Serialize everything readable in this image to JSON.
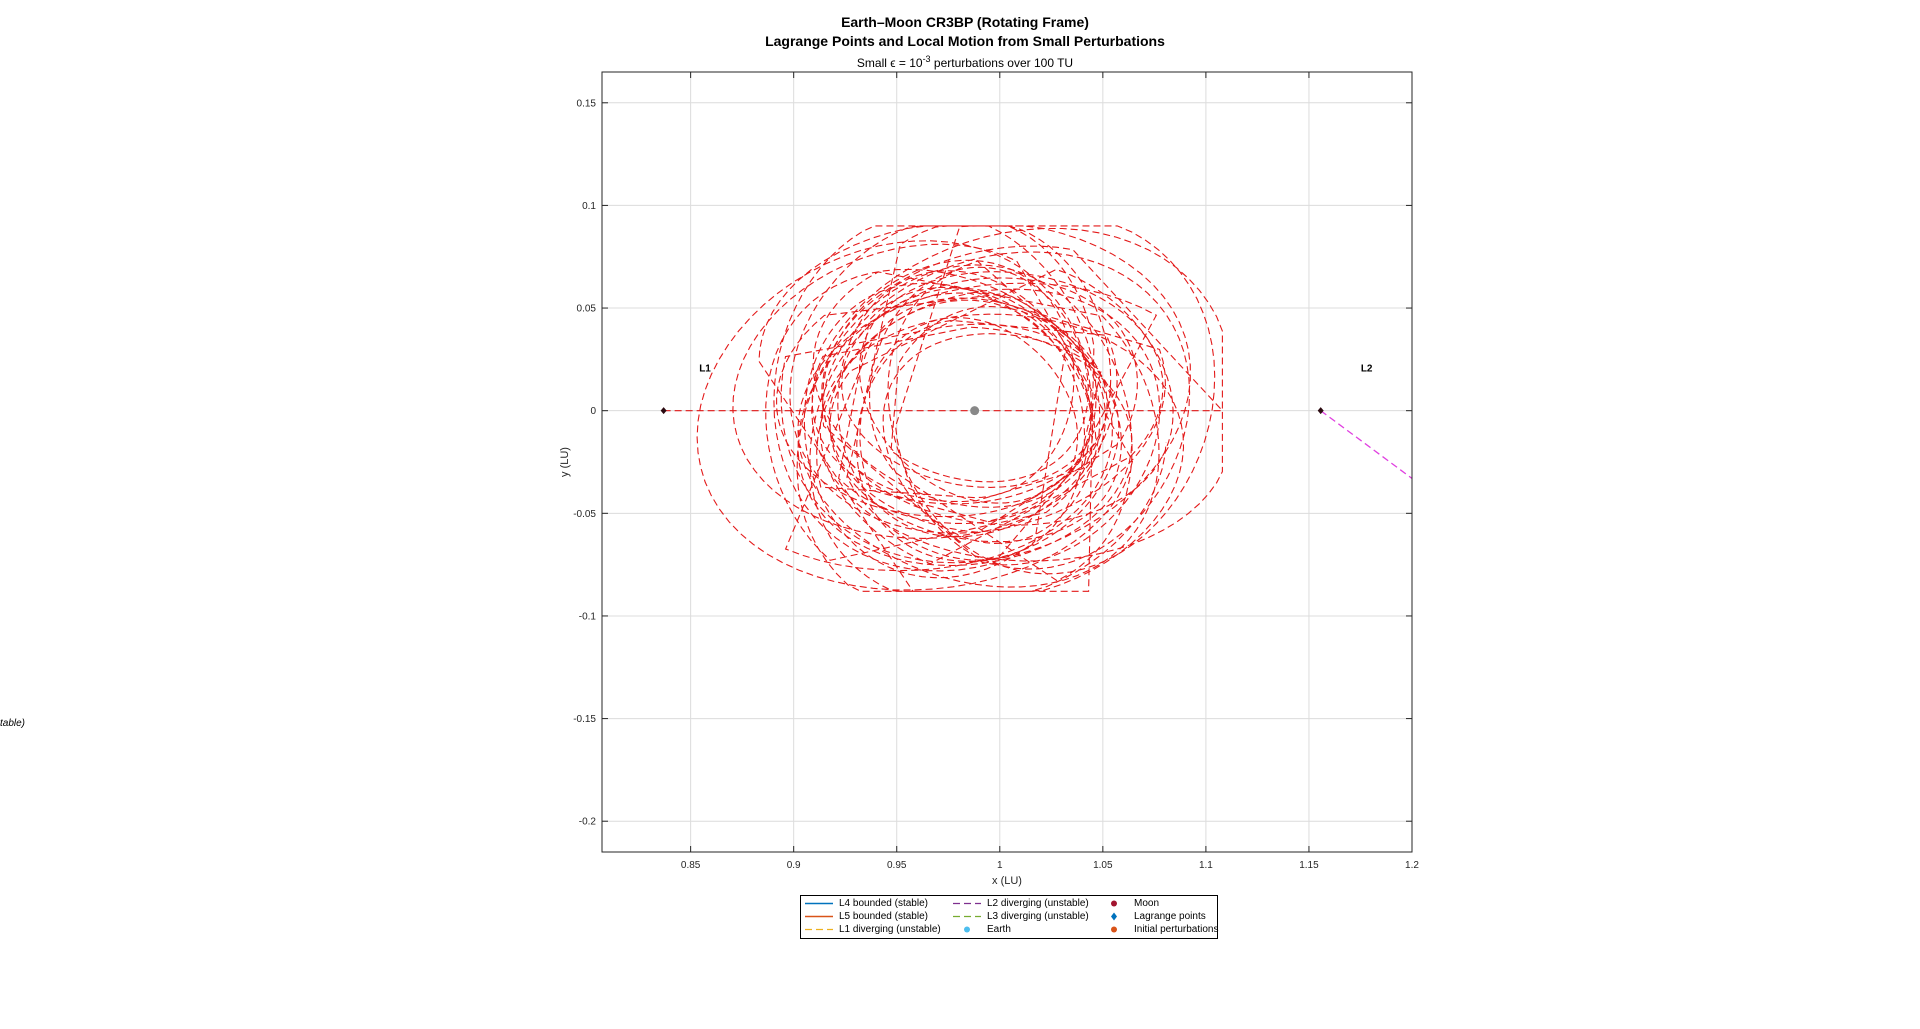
{
  "figure": {
    "title_line1": "Earth–Moon CR3BP (Rotating Frame)",
    "title_line2": "Lagrange Points and Local Motion from Small Perturbations",
    "subtitle_prefix": "Small ϵ = 10",
    "subtitle_exp": "-3",
    "subtitle_suffix": " perturbations over 100 TU",
    "stray_text": "table)"
  },
  "chart_data": {
    "type": "line",
    "xlabel": "x (LU)",
    "ylabel": "y (LU)",
    "xlim": [
      0.807,
      1.2
    ],
    "ylim": [
      -0.215,
      0.165
    ],
    "xticks": [
      0.85,
      0.9,
      0.95,
      1,
      1.05,
      1.1,
      1.15,
      1.2
    ],
    "xtick_labels": [
      "0.85",
      "0.9",
      "0.95",
      "1",
      "1.05",
      "1.1",
      "1.15",
      "1.2"
    ],
    "yticks": [
      0.15,
      0.1,
      0.05,
      0,
      -0.05,
      -0.1,
      -0.15,
      -0.2
    ],
    "ytick_labels": [
      "0.15",
      "0.1",
      "0.05",
      "0",
      "-0.05",
      "-0.1",
      "-0.15",
      "-0.2"
    ],
    "grid": true,
    "legend_position": "bottom",
    "colors": {
      "L4": "#0072BD",
      "L5": "#D95319",
      "L1": "#EDB120",
      "L2": "#7E2F8E",
      "L3": "#77AC30",
      "earth": "#4DBEEE",
      "moon": "#A2142F",
      "lagrange": "#0072BD",
      "perturb": "#D95319",
      "orbit": "#E00000",
      "l2_path": "#E040E0",
      "moon_marker": "#888888"
    },
    "points": {
      "moon": [
        0.9878,
        0.0
      ],
      "L1": [
        0.8369,
        0.0
      ],
      "L2": [
        1.1557,
        0.0
      ]
    },
    "point_labels": [
      {
        "text": "L1",
        "x": 0.857,
        "y": 0.019
      },
      {
        "text": "L2",
        "x": 1.178,
        "y": 0.019
      }
    ],
    "l1_trajectory": {
      "center": [
        0.9895,
        0.0
      ],
      "x_extent": [
        0.841,
        1.108
      ],
      "y_extent": [
        -0.088,
        0.09
      ]
    },
    "l2_trajectory": [
      [
        1.1557,
        0.0
      ],
      [
        1.2,
        -0.033
      ]
    ],
    "legend": [
      {
        "label": "L4 bounded (stable)",
        "style": "solid",
        "color_key": "L4"
      },
      {
        "label": "L5 bounded (stable)",
        "style": "solid",
        "color_key": "L5"
      },
      {
        "label": "L1 diverging (unstable)",
        "style": "dashed",
        "color_key": "L1"
      },
      {
        "label": "L2 diverging (unstable)",
        "style": "dashed",
        "color_key": "L2"
      },
      {
        "label": "L3 diverging (unstable)",
        "style": "dashed",
        "color_key": "L3"
      },
      {
        "label": "Earth",
        "style": "dot",
        "color_key": "earth"
      },
      {
        "label": "Moon",
        "style": "dot",
        "color_key": "moon"
      },
      {
        "label": "Lagrange points",
        "style": "diamond",
        "color_key": "lagrange"
      },
      {
        "label": "Initial perturbations",
        "style": "dot",
        "color_key": "perturb"
      }
    ]
  }
}
